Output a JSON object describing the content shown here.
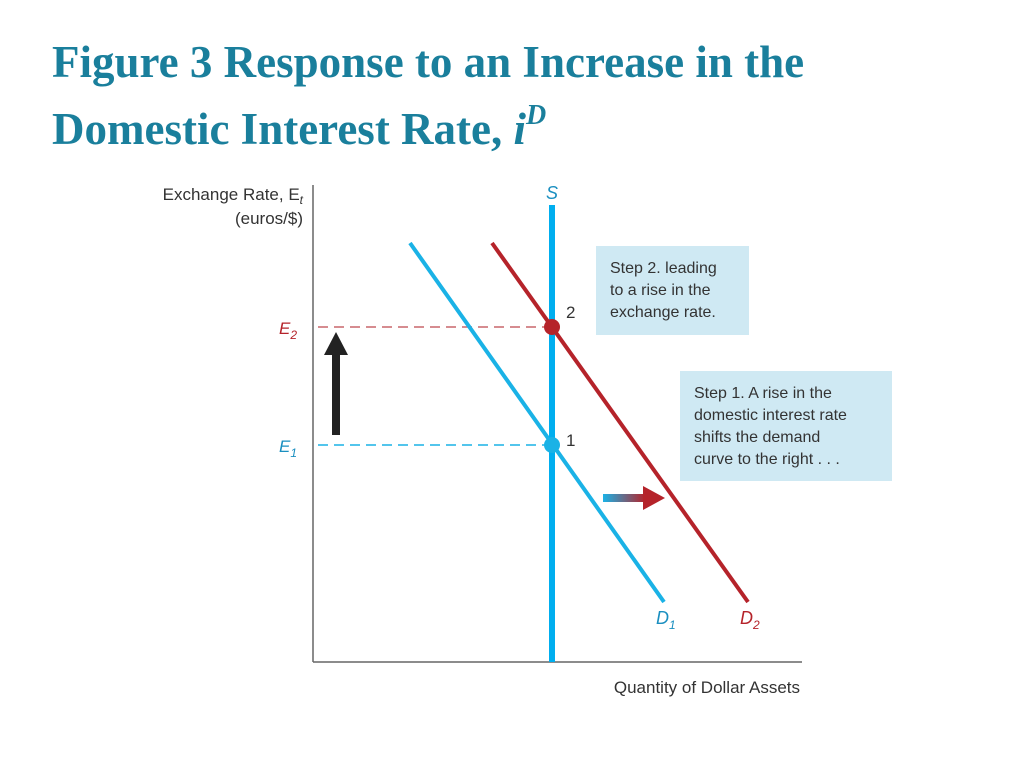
{
  "title": {
    "line1": "Figure 3 Response to an Increase in the",
    "line2": "Domestic Interest Rate, ",
    "var": "i",
    "sup": "D"
  },
  "axes": {
    "y_label_line1": "Exchange Rate, E",
    "y_label_sub": "t",
    "y_label_line2": "(euros/$)",
    "x_label": "Quantity of Dollar Assets"
  },
  "ticks": {
    "e2": "E",
    "e2_sub": "2",
    "e1": "E",
    "e1_sub": "1"
  },
  "curves": {
    "supply": "S",
    "d1": "D",
    "d1_sub": "1",
    "d2": "D",
    "d2_sub": "2"
  },
  "points": {
    "p1": "1",
    "p2": "2"
  },
  "callouts": {
    "step2": [
      "Step 2. leading",
      "to a rise in the",
      "exchange rate."
    ],
    "step1": [
      "Step 1. A rise in the",
      "domestic interest rate",
      "shifts the demand",
      "curve to the right . . ."
    ]
  },
  "colors": {
    "title": "#1a7f9c",
    "supply": "#00aeef",
    "d1": "#1ab2e6",
    "d2": "#b5232a",
    "callout_bg": "#cfe9f3",
    "e2_tick": "#b5232a",
    "e1_tick": "#1ab2e6"
  }
}
